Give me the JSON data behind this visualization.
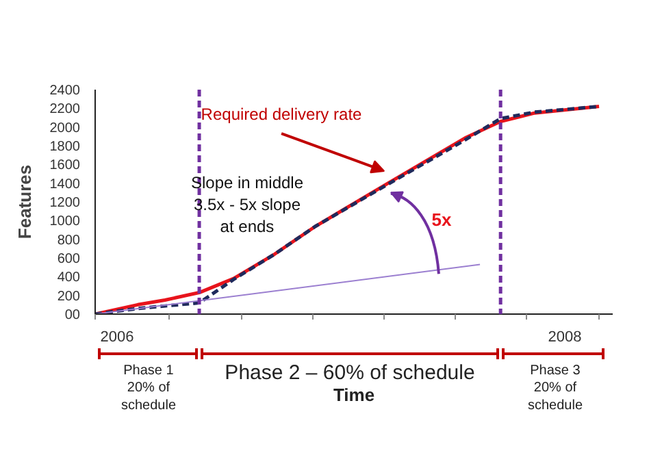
{
  "chart_data": {
    "type": "line",
    "xlabel": "Time",
    "ylabel": "Features",
    "xlim": [
      2005.902,
      2008.214
    ],
    "ylim": [
      0,
      2400
    ],
    "xticks": [
      {
        "value": 2005.902,
        "label": null
      },
      {
        "value": 2006,
        "label": "2006"
      },
      {
        "value": 2006.232,
        "label": null
      },
      {
        "value": 2006.557,
        "label": null
      },
      {
        "value": 2006.875,
        "label": null
      },
      {
        "value": 2007.193,
        "label": null
      },
      {
        "value": 2007.511,
        "label": null
      },
      {
        "value": 2007.829,
        "label": null
      },
      {
        "value": 2008,
        "label": "2008"
      },
      {
        "value": 2008.153,
        "label": null
      }
    ],
    "yticks": [
      {
        "value": 0,
        "label": "00"
      },
      200,
      400,
      600,
      800,
      1000,
      1200,
      1400,
      1600,
      1800,
      2000,
      2200,
      2400
    ],
    "series": [
      {
        "name": "Required delivery rate",
        "color": "#e8141c",
        "line_style": "solid",
        "x": [
          2005.902,
          2006.092,
          2006.214,
          2006.367,
          2006.52,
          2006.703,
          2006.887,
          2007.211,
          2007.56,
          2007.713,
          2007.865,
          2008.153
        ],
        "values": [
          0,
          100,
          150,
          230,
          380,
          640,
          940,
          1400,
          1890,
          2060,
          2150,
          2220
        ]
      },
      {
        "color": "#1f2a5c",
        "line_style": "dashed",
        "x": [
          2005.902,
          2006.092,
          2006.367,
          2006.52,
          2006.703,
          2006.887,
          2007.211,
          2007.56,
          2007.713,
          2007.865,
          2008.153
        ],
        "values": [
          0,
          60,
          120,
          370,
          640,
          940,
          1390,
          1870,
          2090,
          2160,
          2220
        ]
      },
      {
        "color": "#9b7fd0",
        "line_style": "solid",
        "x": [
          2005.902,
          2007.621
        ],
        "values": [
          0,
          530
        ]
      }
    ],
    "ref_lines": [
      {
        "axis": "x",
        "value": 2006.367,
        "color": "#7030a0",
        "line_style": "dashed"
      },
      {
        "axis": "x",
        "value": 2007.713,
        "color": "#7030a0",
        "line_style": "dashed"
      }
    ],
    "annotations": [
      "Slope in middle\n3.5x - 5x slope\nat ends",
      "5x",
      "Phase 1\n20% of\nschedule",
      "Phase 2 – 60% of schedule",
      "Phase 3\n20% of\nschedule"
    ],
    "grid": false
  }
}
